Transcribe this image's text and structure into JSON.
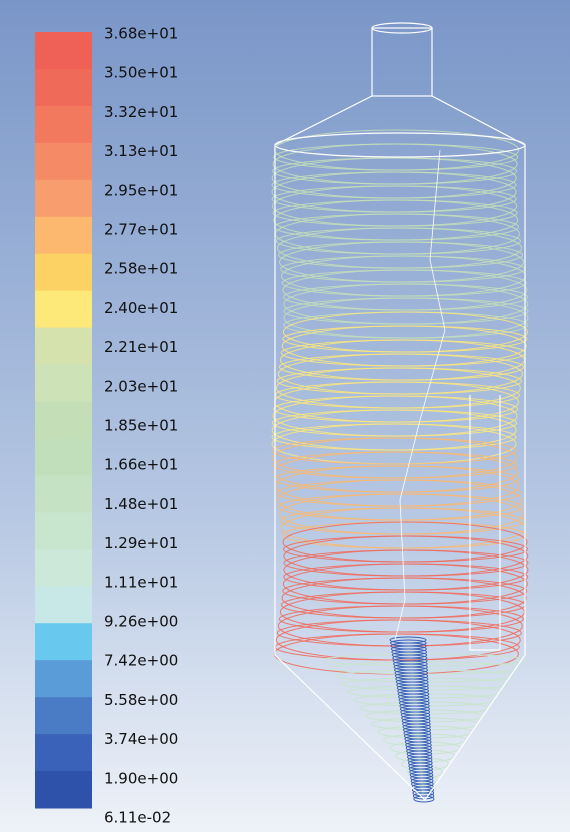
{
  "colorbar": {
    "labels": [
      "3.68e+01",
      "3.50e+01",
      "3.32e+01",
      "3.13e+01",
      "2.95e+01",
      "2.77e+01",
      "2.58e+01",
      "2.40e+01",
      "2.21e+01",
      "2.03e+01",
      "1.85e+01",
      "1.66e+01",
      "1.48e+01",
      "1.29e+01",
      "1.11e+01",
      "9.26e+00",
      "7.42e+00",
      "5.58e+00",
      "3.74e+00",
      "1.90e+00",
      "6.11e-02"
    ],
    "colors": [
      "#ef6156",
      "#f06a5a",
      "#f2785e",
      "#f58a66",
      "#f89e6e",
      "#fcb86e",
      "#fdd264",
      "#fde87a",
      "#d6e2ae",
      "#cde2b6",
      "#c4dfb8",
      "#c2dfbc",
      "#c5e3c4",
      "#c8e5cd",
      "#cce8d8",
      "#c8e8e8",
      "#68c8ee",
      "#5a9cd8",
      "#4a7cc6",
      "#3a62b8",
      "#2e52aa"
    ]
  }
}
